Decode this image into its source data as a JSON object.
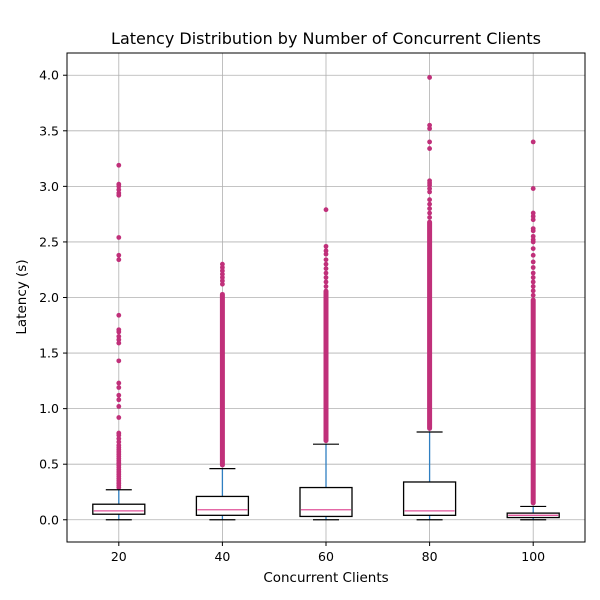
{
  "chart_data": {
    "type": "box",
    "title": "Latency Distribution by Number of Concurrent Clients",
    "xlabel": "Concurrent Clients",
    "ylabel": "Latency (s)",
    "categories": [
      "20",
      "40",
      "60",
      "80",
      "100"
    ],
    "ylim": [
      -0.2,
      4.2
    ],
    "yticks": [
      0.0,
      0.5,
      1.0,
      1.5,
      2.0,
      2.5,
      3.0,
      3.5,
      4.0
    ],
    "ytick_labels": [
      "0.0",
      "0.5",
      "1.0",
      "1.5",
      "2.0",
      "2.5",
      "3.0",
      "3.5",
      "4.0"
    ],
    "grid": true,
    "colors": {
      "box_edge": "#000000",
      "median": "#e0539a",
      "whisker": "#2f7fc1",
      "cap": "#000000",
      "outlier": "#c0307a",
      "grid": "#b0b0b0"
    },
    "boxes": [
      {
        "category": "20",
        "whisker_low": 0.0,
        "q1": 0.05,
        "median": 0.08,
        "q3": 0.14,
        "whisker_high": 0.27,
        "outliers": [
          0.29,
          0.31,
          0.33,
          0.35,
          0.37,
          0.39,
          0.41,
          0.43,
          0.45,
          0.47,
          0.49,
          0.51,
          0.53,
          0.55,
          0.57,
          0.59,
          0.61,
          0.63,
          0.65,
          0.67,
          0.7,
          0.73,
          0.76,
          0.78,
          0.92,
          1.02,
          1.08,
          1.12,
          1.19,
          1.23,
          1.43,
          1.59,
          1.62,
          1.65,
          1.69,
          1.71,
          1.84,
          2.34,
          2.38,
          2.54,
          2.92,
          2.94,
          2.97,
          3.0,
          3.02,
          3.19
        ]
      },
      {
        "category": "40",
        "whisker_low": 0.0,
        "q1": 0.04,
        "median": 0.09,
        "q3": 0.21,
        "whisker_high": 0.46,
        "outliers": [
          2.12,
          2.15,
          2.18,
          2.21,
          2.24,
          2.27,
          2.3
        ],
        "outlier_band": [
          0.47,
          2.05
        ]
      },
      {
        "category": "60",
        "whisker_low": 0.0,
        "q1": 0.03,
        "median": 0.09,
        "q3": 0.29,
        "whisker_high": 0.68,
        "outliers": [
          2.1,
          2.14,
          2.18,
          2.22,
          2.26,
          2.3,
          2.34,
          2.39,
          2.42,
          2.46,
          2.79
        ],
        "outlier_band": [
          0.69,
          2.08
        ]
      },
      {
        "category": "80",
        "whisker_low": 0.0,
        "q1": 0.04,
        "median": 0.08,
        "q3": 0.34,
        "whisker_high": 0.79,
        "outliers": [
          2.72,
          2.76,
          2.8,
          2.84,
          2.88,
          2.95,
          2.98,
          3.01,
          3.03,
          3.05,
          3.34,
          3.4,
          3.52,
          3.55,
          3.98
        ],
        "outlier_band": [
          0.8,
          2.7
        ]
      },
      {
        "category": "100",
        "whisker_low": 0.0,
        "q1": 0.02,
        "median": 0.04,
        "q3": 0.06,
        "whisker_high": 0.12,
        "outliers": [
          2.02,
          2.06,
          2.1,
          2.14,
          2.18,
          2.22,
          2.27,
          2.32,
          2.38,
          2.44,
          2.5,
          2.52,
          2.55,
          2.6,
          2.62,
          2.7,
          2.73,
          2.76,
          2.98,
          3.4
        ],
        "outlier_band": [
          0.13,
          2.0
        ]
      }
    ]
  }
}
